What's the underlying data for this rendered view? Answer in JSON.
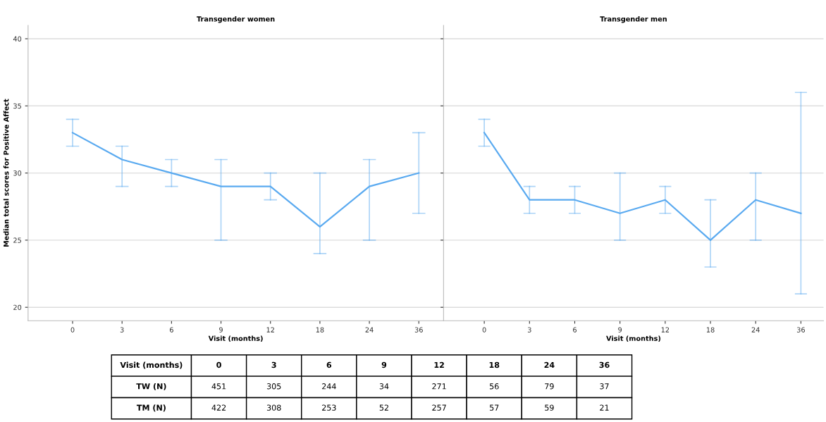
{
  "chart_data": [
    {
      "type": "line",
      "title": "Transgender women",
      "xlabel": "Visit (months)",
      "ylabel": "Median total scores for Positive Affect",
      "categories": [
        "0",
        "3",
        "6",
        "9",
        "12",
        "18",
        "24",
        "36"
      ],
      "series": [
        {
          "color": "#5aaaf0",
          "values": [
            33,
            31,
            30,
            29,
            29,
            26,
            29,
            30
          ],
          "errors": [
            [
              32,
              34
            ],
            [
              29,
              32
            ],
            [
              29,
              31
            ],
            [
              25,
              31
            ],
            [
              28,
              30
            ],
            [
              24,
              30
            ],
            [
              25,
              31
            ],
            [
              27,
              33
            ]
          ]
        }
      ],
      "ylim": [
        19,
        41
      ],
      "yticks": [
        20,
        25,
        30,
        35,
        40
      ],
      "grid": "y",
      "marker": "none",
      "line_style": "solid",
      "annotations": [
        "Visit (months)",
        "0",
        "3",
        "6",
        "9",
        "12",
        "18",
        "24",
        "36",
        "TW (N)",
        "451",
        "305",
        "244",
        "34",
        "271",
        "56",
        "79",
        "37",
        "TM (N)",
        "422",
        "308",
        "253",
        "52",
        "257",
        "57",
        "59",
        "21"
      ]
    },
    {
      "type": "line",
      "title": "Transgender men",
      "xlabel": "Visit (months)",
      "categories": [
        "0",
        "3",
        "6",
        "9",
        "12",
        "18",
        "24",
        "36"
      ],
      "series": [
        {
          "color": "#5aaaf0",
          "values": [
            33,
            28,
            28,
            27,
            28,
            25,
            28,
            27
          ],
          "errors": [
            [
              32,
              34
            ],
            [
              27,
              29
            ],
            [
              27,
              29
            ],
            [
              25,
              30
            ],
            [
              27,
              29
            ],
            [
              23,
              28
            ],
            [
              25,
              30
            ],
            [
              21,
              36
            ]
          ]
        }
      ],
      "ylim": [
        19,
        41
      ],
      "yticks": [
        20,
        25,
        30,
        35,
        40
      ],
      "grid": "y",
      "marker": "none",
      "line_style": "solid",
      "tick_labels": "x"
    }
  ]
}
